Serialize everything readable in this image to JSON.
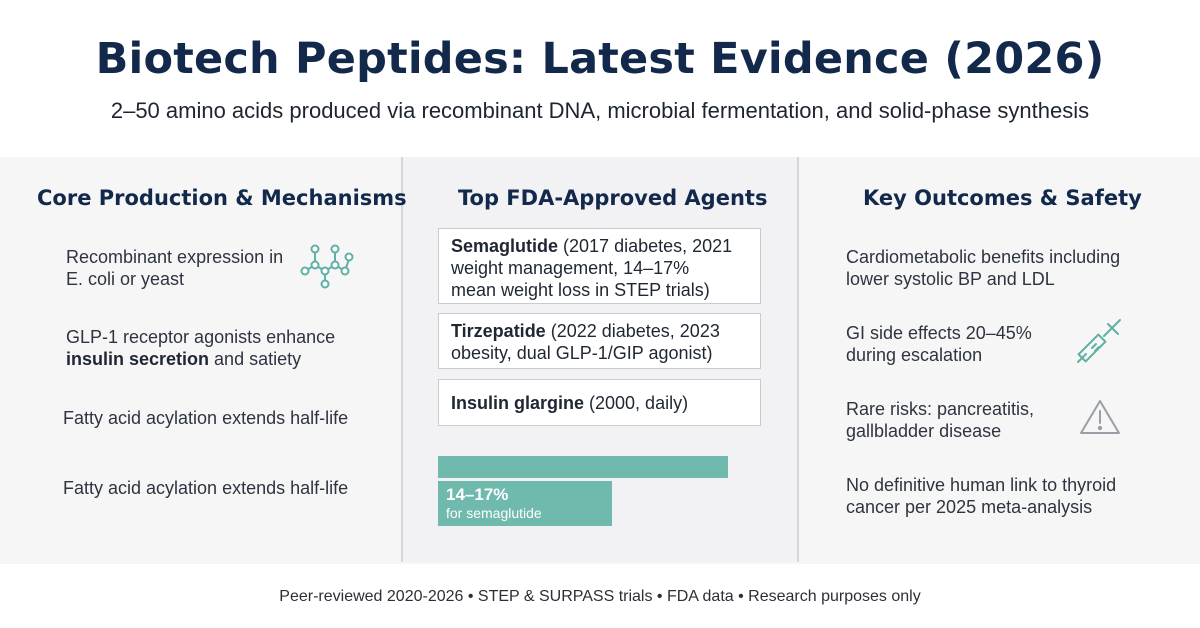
{
  "header": {
    "title": "Biotech Peptides: Latest Evidence (2026)",
    "subtitle": "2–50 amino acids produced via recombinant DNA, microbial fermentation, and solid-phase synthesis"
  },
  "left": {
    "heading": "Core Production & Mechanisms",
    "item1_line1": "Recombinant expression in",
    "item1_line2": "E. coli or yeast",
    "item2_line1": "GLP-1 receptor agonists enhance",
    "item2_bold": "insulin secretion",
    "item2_rest": " and satiety",
    "item3": "Fatty acid acylation extends half-life",
    "item4": "Fatty acid acylation extends half-life",
    "icon": "molecule-icon"
  },
  "middle": {
    "heading": "Top FDA-Approved Agents",
    "cards": [
      {
        "name": "Semaglutide",
        "detail_l1": " (2017 diabetes, 2021",
        "detail_l2": "weight management, 14–17%",
        "detail_l3": "mean weight loss in STEP trials)"
      },
      {
        "name": "Tirzepatide",
        "detail_l1": " (2022 diabetes, 2023",
        "detail_l2": "obesity, dual GLP-1/GIP agonist)"
      },
      {
        "name": "Insulin glargine",
        "detail_l1": " (2000, daily)"
      }
    ],
    "bars": {
      "full_fraction": 1.0,
      "semaglutide_fraction": 0.6,
      "label": "14–17%",
      "sublabel": "for semaglutide",
      "color": "#6fb9ad"
    }
  },
  "right": {
    "heading": "Key Outcomes & Safety",
    "item1_line1": "Cardiometabolic benefits including",
    "item1_line2": "lower systolic BP and LDL",
    "item2_line1": "GI side effects 20–45%",
    "item2_line2": "during escalation",
    "item3_line1": "Rare risks: pancreatitis,",
    "item3_line2": "gallbladder disease",
    "item4_line1": "No definitive human link to thyroid",
    "item4_line2": "cancer per 2025 meta-analysis",
    "icons": [
      "syringe-icon",
      "warning-icon"
    ]
  },
  "footer": {
    "text": "Peer-reviewed 2020-2026 • STEP & SURPASS trials • FDA data • Research purposes only"
  },
  "colors": {
    "title": "#13294b",
    "accent": "#6fb9ad",
    "panel": "#f6f6f7"
  }
}
